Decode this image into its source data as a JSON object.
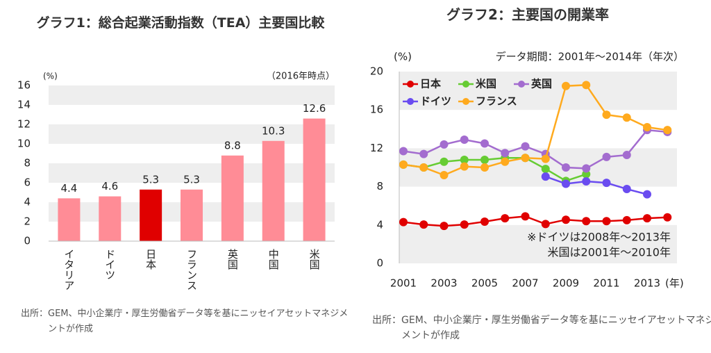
{
  "chart_data": [
    {
      "type": "bar",
      "title": "グラフ1：総合起業活動指数（TEA）主要国比較",
      "unit_label": "(%)",
      "note": "（2016年時点）",
      "categories": [
        "イタリア",
        "ドイツ",
        "日本",
        "フランス",
        "英国",
        "中国",
        "米国"
      ],
      "values": [
        4.4,
        4.6,
        5.3,
        5.3,
        8.8,
        10.3,
        12.6
      ],
      "colors": [
        "#ff8c96",
        "#ff8c96",
        "#e00000",
        "#ff8c96",
        "#ff8c96",
        "#ff8c96",
        "#ff8c96"
      ],
      "ylim": [
        0,
        16
      ],
      "yticks": [
        0,
        2,
        4,
        6,
        8,
        10,
        12,
        14,
        16
      ],
      "grid": true,
      "source": "出所：GEM、中小企業庁・厚生労働省データ等を基にニッセイアセットマネジメントが作成"
    },
    {
      "type": "line",
      "title": "グラフ2：主要国の開業率",
      "unit_label": "(%)",
      "note": "データ期間：2001年～2014年（年次）",
      "xlabel": "(年)",
      "x": [
        2001,
        2002,
        2003,
        2004,
        2005,
        2006,
        2007,
        2008,
        2009,
        2010,
        2011,
        2012,
        2013,
        2014
      ],
      "xlim": [
        2001,
        2014.5
      ],
      "xticks": [
        2001,
        2003,
        2005,
        2007,
        2009,
        2011,
        2013
      ],
      "ylim": [
        0,
        20
      ],
      "yticks": [
        0,
        4,
        8,
        12,
        16,
        20
      ],
      "grid": true,
      "legend": "top-left",
      "series": [
        {
          "name": "日本",
          "color": "#e00000",
          "values": [
            4.3,
            4.05,
            3.9,
            4.05,
            4.35,
            4.7,
            4.9,
            4.1,
            4.55,
            4.4,
            4.4,
            4.5,
            4.7,
            4.8
          ]
        },
        {
          "name": "米国",
          "color": "#66cc33",
          "values": [
            10.3,
            10.0,
            10.6,
            10.8,
            10.8,
            11.0,
            11.0,
            9.85,
            8.6,
            9.3,
            null,
            null,
            null,
            null
          ]
        },
        {
          "name": "英国",
          "color": "#a36ccf",
          "values": [
            11.7,
            11.4,
            12.4,
            12.9,
            12.5,
            11.5,
            12.2,
            11.4,
            10.0,
            9.9,
            11.1,
            11.3,
            13.9,
            13.7
          ]
        },
        {
          "name": "ドイツ",
          "color": "#6a4cf0",
          "values": [
            null,
            null,
            null,
            null,
            null,
            null,
            null,
            9.05,
            8.3,
            8.55,
            8.4,
            7.75,
            7.2,
            null
          ]
        },
        {
          "name": "フランス",
          "color": "#ffaa1e",
          "values": [
            10.3,
            10.0,
            9.2,
            10.1,
            10.0,
            10.6,
            11.0,
            10.9,
            18.5,
            18.6,
            15.5,
            15.2,
            14.2,
            13.9
          ]
        }
      ],
      "annotations": [
        "※ドイツは2008年～2013年",
        "米国は2001年～2010年"
      ],
      "source": "出所：GEM、中小企業庁・厚生労働省データ等を基にニッセイアセットマネジメントが作成"
    }
  ]
}
